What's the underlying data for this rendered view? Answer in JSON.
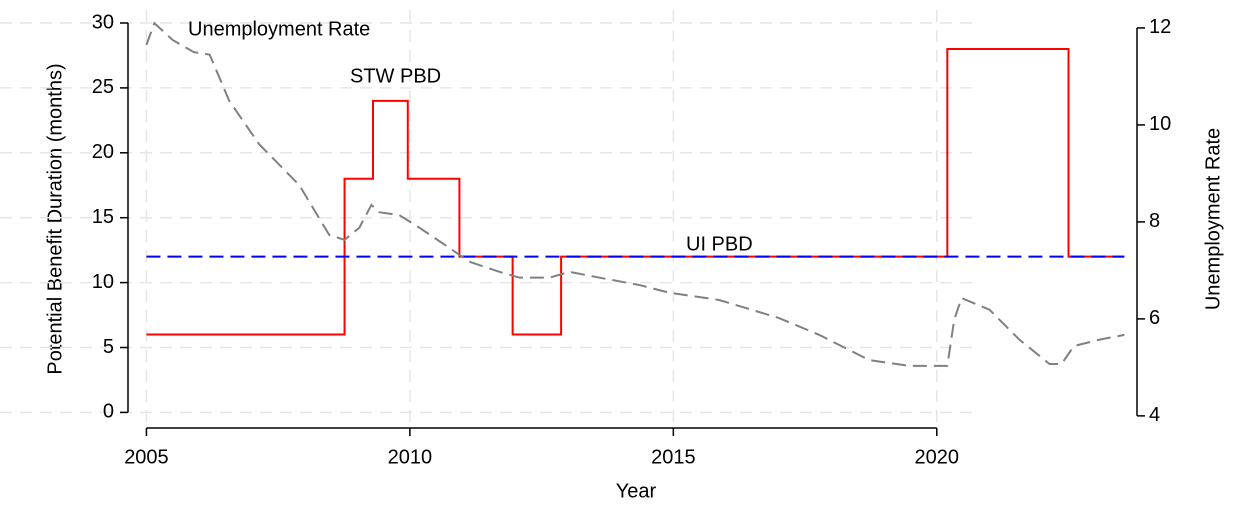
{
  "chart_data": {
    "type": "line",
    "x_label": "Year",
    "y_label": "Potential Benefit Duration (months)",
    "y2_label": "Unemployment Rate",
    "annotations": [
      "Unemployment Rate",
      "STW PBD",
      "UI PBD"
    ],
    "xlim": [
      2004.65,
      2023.8
    ],
    "xticks": [
      2005,
      2010,
      2015,
      2020
    ],
    "ylim": [
      -1.2,
      31
    ],
    "yticks": [
      0,
      5,
      10,
      15,
      20,
      25,
      30
    ],
    "y2lim": [
      3.75,
      12.37
    ],
    "y2ticks": [
      4,
      6,
      8,
      10,
      12
    ],
    "grid": true,
    "series": [
      {
        "name": "STW PBD",
        "color": "#ff0000",
        "dash": "solid",
        "x": [
          2005,
          2008.76,
          2008.76,
          2009.3,
          2009.3,
          2009.96,
          2009.96,
          2010.94,
          2010.94,
          2011.95,
          2011.95,
          2012.87,
          2012.87,
          2020.2,
          2020.2,
          2022.5,
          2022.5,
          2023.56
        ],
        "values": [
          6,
          6,
          18,
          18,
          24,
          24,
          18,
          18,
          12,
          12,
          6,
          6,
          12,
          12,
          28,
          28,
          12,
          12
        ]
      },
      {
        "name": "UI PBD",
        "color": "#0000ff",
        "dash": "dashed",
        "x": [
          2005,
          2023.56
        ],
        "values": [
          12,
          12
        ]
      },
      {
        "name": "Unemployment Rate",
        "color": "#808080",
        "dash": "dashed",
        "axis": "y2",
        "x": [
          2005,
          2005.15,
          2005.5,
          2005.9,
          2006.2,
          2006.57,
          2007.14,
          2007.9,
          2008.47,
          2008.76,
          2009.04,
          2009.27,
          2009.42,
          2009.8,
          2010.18,
          2010.66,
          2011.13,
          2011.7,
          2012.08,
          2012.65,
          2013.03,
          2013.6,
          2014.35,
          2014.92,
          2015.87,
          2017.0,
          2017.77,
          2018.72,
          2019.48,
          2020.2,
          2020.33,
          2020.47,
          2021.0,
          2021.57,
          2022.14,
          2022.37,
          2022.6,
          2023.08,
          2023.56
        ],
        "values": [
          11.65,
          12.1,
          11.75,
          11.5,
          11.45,
          10.5,
          9.6,
          8.76,
          7.73,
          7.63,
          7.88,
          8.35,
          8.2,
          8.14,
          7.88,
          7.53,
          7.18,
          6.97,
          6.85,
          6.85,
          6.97,
          6.85,
          6.7,
          6.54,
          6.39,
          6.02,
          5.67,
          5.15,
          5.03,
          5.03,
          5.98,
          6.43,
          6.19,
          5.57,
          5.07,
          5.07,
          5.44,
          5.57,
          5.67
        ]
      }
    ]
  }
}
